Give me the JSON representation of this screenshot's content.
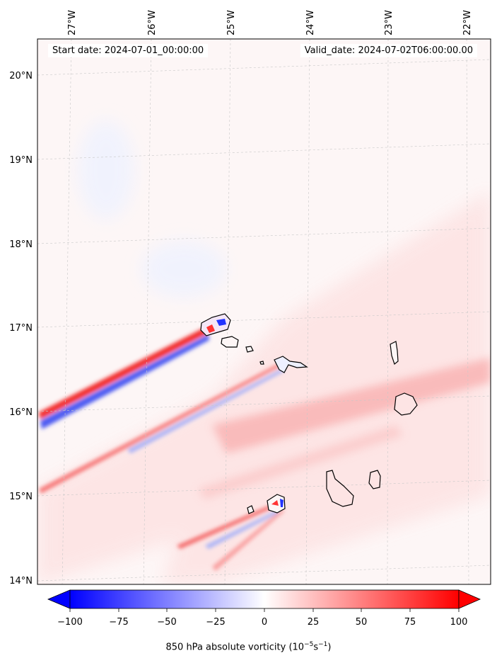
{
  "map": {
    "start_label": "Start date: 2024-07-01_00:00:00",
    "valid_label": "Valid_date: 2024-07-02T06:00:00.00",
    "lon_labels": [
      "27°W",
      "26°W",
      "25°W",
      "24°W",
      "23°W",
      "22°W"
    ],
    "lat_labels": [
      "20°N",
      "19°N",
      "18°N",
      "17°N",
      "16°N",
      "15°N",
      "14°N"
    ],
    "region": "Cabo Verde islands",
    "field": "850 hPa absolute vorticity"
  },
  "colorbar": {
    "ticks": [
      "−100",
      "−75",
      "−50",
      "−25",
      "0",
      "25",
      "50",
      "75",
      "100"
    ],
    "title_main": "850 hPa absolute vorticity (10",
    "title_exp1": "−5",
    "title_mid": "s",
    "title_exp2": "−1",
    "title_end": ")",
    "min_color": "#0000ff",
    "mid_color": "#ffffff",
    "max_color": "#ff0000"
  }
}
